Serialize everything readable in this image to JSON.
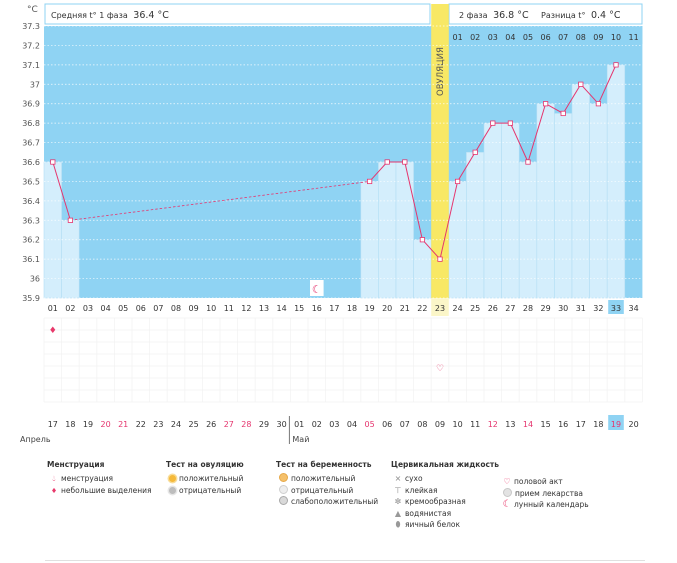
{
  "header": {
    "unit": "°C",
    "phase1_label": "Средняя t° 1 фаза",
    "phase1_value": "36.4 °C",
    "phase2_label": "2 фаза",
    "phase2_value": "36.8 °C",
    "diff_label": "Разница t°",
    "diff_value": "0.4 °C",
    "ovulation_label": "ОВУЛЯЦИЯ"
  },
  "phase2_day_labels": [
    "01",
    "02",
    "03",
    "04",
    "05",
    "06",
    "07",
    "08",
    "09",
    "10",
    "11"
  ],
  "dates": [
    "17",
    "18",
    "19",
    "20",
    "21",
    "22",
    "23",
    "24",
    "25",
    "26",
    "27",
    "28",
    "29",
    "30",
    "01",
    "02",
    "03",
    "04",
    "05",
    "06",
    "07",
    "08",
    "09",
    "10",
    "11",
    "12",
    "13",
    "14",
    "15",
    "16",
    "17",
    "18",
    "19",
    "20"
  ],
  "red_dates": [
    3,
    4,
    10,
    11,
    18,
    25,
    27,
    32
  ],
  "months": {
    "april": "Апрель",
    "may": "Май"
  },
  "chart_data": {
    "type": "line",
    "title": "",
    "xlabel": "",
    "ylabel": "°C",
    "x": [
      "01",
      "02",
      "03",
      "04",
      "05",
      "06",
      "07",
      "08",
      "09",
      "10",
      "11",
      "12",
      "13",
      "14",
      "15",
      "16",
      "17",
      "18",
      "19",
      "20",
      "21",
      "22",
      "23",
      "24",
      "25",
      "26",
      "27",
      "28",
      "29",
      "30",
      "31",
      "32",
      "33",
      "34"
    ],
    "ylim": [
      35.9,
      37.3
    ],
    "yticks": [
      "35.9",
      "36",
      "36.1",
      "36.2",
      "36.3",
      "36.4",
      "36.5",
      "36.6",
      "36.7",
      "36.8",
      "36.9",
      "37",
      "37.1",
      "37.2",
      "37.3"
    ],
    "series": [
      {
        "values": [
          36.6,
          36.3,
          null,
          null,
          null,
          null,
          null,
          null,
          null,
          null,
          null,
          null,
          null,
          null,
          null,
          null,
          null,
          null,
          36.5,
          36.6,
          36.6,
          36.2,
          36.1,
          36.5,
          36.65,
          36.8,
          36.8,
          36.6,
          36.9,
          36.85,
          37.0,
          36.9,
          37.1,
          null
        ]
      }
    ],
    "dashed_segment": [
      "02",
      "19"
    ],
    "ovulation_day": "23",
    "current_day": "33",
    "menstruation_days": [
      "01"
    ],
    "lunar_day": "16",
    "intercourse_day": "23",
    "grid": true
  },
  "legend": {
    "menstruation": {
      "title": "Менструация",
      "items": [
        "менструация",
        "небольшие выделения"
      ]
    },
    "ovulation_test": {
      "title": "Тест на овуляцию",
      "items": [
        "положительный",
        "отрицательный"
      ]
    },
    "pregnancy_test": {
      "title": "Тест на беременность",
      "items": [
        "положительный",
        "отрицательный",
        "слабоположительный"
      ]
    },
    "cervical_fluid": {
      "title": "Цервикальная жидкость",
      "items": [
        "сухо",
        "клейкая",
        "кремообразная",
        "водянистая",
        "яичный белок"
      ]
    },
    "other": {
      "items": [
        "половой акт",
        "прием лекарства",
        "лунный календарь"
      ]
    },
    "colors": {
      "menstruation": "#e8396b",
      "ovu_pos": "#f5b93a",
      "ovu_neg": "#bdbdbd",
      "preg_pos": "#f5c06a",
      "preg_neg": "#e0e0e0",
      "preg_weak": "#c9c9c9",
      "fluid": "#9a9a9a"
    },
    "icons": {
      "dry": "cross-icon",
      "sticky": "t-icon",
      "creamy": "swirl-icon",
      "watery": "drop-icon",
      "egg": "egg-icon",
      "sex": "heart-icon",
      "pill": "pill-icon",
      "moon": "moon-icon"
    }
  },
  "colors": {
    "chart_bg": "#8fd3f3",
    "bar_fill": "#d4eefc",
    "bar_stroke": "#b4def4",
    "line": "#e5356e",
    "ovulation": "#f8e865",
    "ovulation_light": "#fbf6c8",
    "current_day": "#8fd3f3"
  }
}
